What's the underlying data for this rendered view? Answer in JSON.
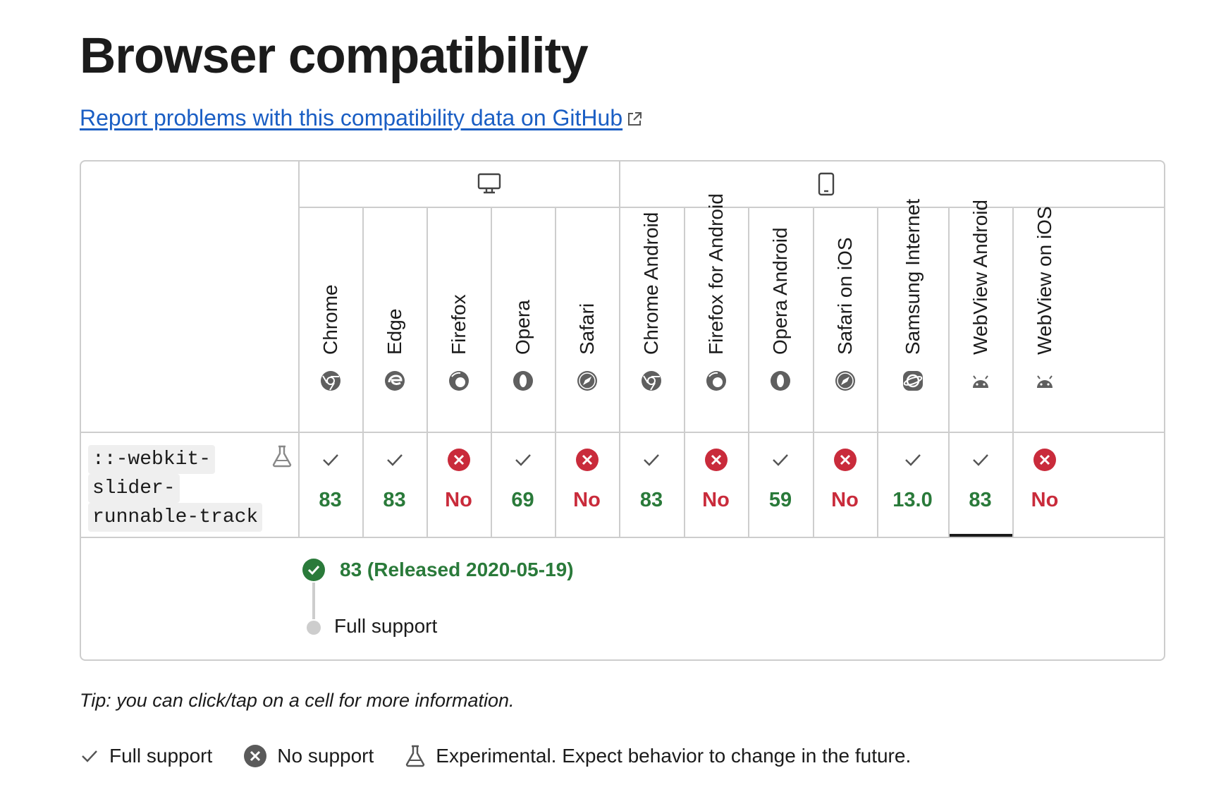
{
  "page": {
    "title": "Browser compatibility",
    "report_link": "Report problems with this compatibility data on GitHub"
  },
  "platforms": [
    {
      "name": "desktop",
      "icon": "desktop-icon"
    },
    {
      "name": "mobile",
      "icon": "mobile-icon"
    }
  ],
  "browsers": [
    {
      "name": "Chrome",
      "icon": "chrome-icon",
      "support": "yes",
      "version": "83"
    },
    {
      "name": "Edge",
      "icon": "edge-icon",
      "support": "yes",
      "version": "83"
    },
    {
      "name": "Firefox",
      "icon": "firefox-icon",
      "support": "no",
      "version": "No"
    },
    {
      "name": "Opera",
      "icon": "opera-icon",
      "support": "yes",
      "version": "69"
    },
    {
      "name": "Safari",
      "icon": "safari-icon",
      "support": "no",
      "version": "No"
    },
    {
      "name": "Chrome Android",
      "icon": "chrome-icon",
      "support": "yes",
      "version": "83"
    },
    {
      "name": "Firefox for Android",
      "icon": "firefox-icon",
      "support": "no",
      "version": "No"
    },
    {
      "name": "Opera Android",
      "icon": "opera-icon",
      "support": "yes",
      "version": "59"
    },
    {
      "name": "Safari on iOS",
      "icon": "safari-icon",
      "support": "no",
      "version": "No"
    },
    {
      "name": "Samsung Internet",
      "icon": "samsung-internet-icon",
      "support": "yes",
      "version": "13.0"
    },
    {
      "name": "WebView Android",
      "icon": "android-icon",
      "support": "yes",
      "version": "83"
    },
    {
      "name": "WebView on iOS",
      "icon": "android-icon",
      "support": "no",
      "version": "No"
    }
  ],
  "feature": {
    "lines": [
      "::-webkit-",
      "slider-",
      "runnable-track"
    ],
    "flag_icon": "experimental-flask-icon"
  },
  "detail": {
    "version_text": "83 (Released 2020-05-19)",
    "support_label": "Full support"
  },
  "tip": "Tip: you can click/tap on a cell for more information.",
  "legend": [
    {
      "icon": "check-icon",
      "label": "Full support"
    },
    {
      "icon": "no-support-icon",
      "label": "No support"
    },
    {
      "icon": "experimental-flask-icon",
      "label": "Experimental. Expect behavior to change in the future."
    }
  ],
  "colors": {
    "link": "#1a5ec4",
    "supported": "#2a7a3a",
    "unsupported": "#c92b3b",
    "border": "#cdcdcd"
  }
}
